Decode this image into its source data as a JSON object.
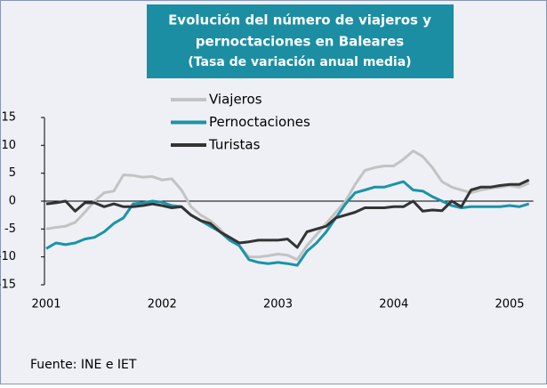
{
  "chart_data": {
    "type": "line",
    "title": [
      "Evolución del número de viajeros y",
      "pernoctaciones en Baleares"
    ],
    "subtitle": "(Tasa de variación anual media)",
    "categories": [
      "2001",
      null,
      null,
      null,
      null,
      null,
      null,
      null,
      null,
      null,
      null,
      null,
      "2002",
      null,
      null,
      null,
      null,
      null,
      null,
      null,
      null,
      null,
      null,
      null,
      "2003",
      null,
      null,
      null,
      null,
      null,
      null,
      null,
      null,
      null,
      null,
      null,
      "2004",
      null,
      null,
      null,
      null,
      null,
      null,
      null,
      null,
      null,
      null,
      null,
      "2005",
      null,
      null
    ],
    "series": [
      {
        "name": "Viajeros",
        "color": "#c3c3c3",
        "values": [
          -5,
          -4.7,
          -4.5,
          -3.8,
          -2,
          0,
          1.5,
          1.8,
          4.7,
          4.6,
          4.3,
          4.4,
          3.8,
          4,
          2,
          -1,
          -2.5,
          -3.5,
          -5,
          -7,
          -8,
          -10,
          -10,
          -9.8,
          -9.5,
          -9.7,
          -10.5,
          -8,
          -6,
          -4,
          -2,
          0,
          3,
          5.5,
          6,
          6.3,
          6.3,
          7.5,
          9,
          8,
          6,
          3.5,
          2.5,
          2,
          1.5,
          2,
          2.3,
          2.5,
          2.8,
          2.5,
          3.2
        ]
      },
      {
        "name": "Pernoctaciones",
        "color": "#1b93a8",
        "values": [
          -8.5,
          -7.5,
          -7.8,
          -7.5,
          -6.8,
          -6.5,
          -5.5,
          -4,
          -3,
          -0.5,
          -0.3,
          0,
          -0.2,
          -0.8,
          -1,
          -2.5,
          -3.5,
          -4.5,
          -5.5,
          -7,
          -8,
          -10.5,
          -11,
          -11.2,
          -11,
          -11.2,
          -11.5,
          -9,
          -7.5,
          -5.5,
          -3,
          -0.5,
          1.5,
          2,
          2.5,
          2.5,
          3,
          3.5,
          2,
          1.8,
          0.8,
          0,
          -0.8,
          -1.2,
          -1,
          -1,
          -1,
          -1,
          -0.8,
          -1,
          -0.5
        ]
      },
      {
        "name": "Turistas",
        "color": "#333333",
        "values": [
          -0.5,
          -0.3,
          0,
          -1.8,
          -0.3,
          -0.3,
          -1,
          -0.5,
          -1,
          -1,
          -0.8,
          -0.5,
          -0.8,
          -1.2,
          -1,
          -2.5,
          -3.5,
          -4,
          -5.5,
          -6.5,
          -7.5,
          -7.3,
          -7,
          -7,
          -7,
          -6.8,
          -8.3,
          -5.5,
          -5,
          -4.5,
          -3,
          -2.5,
          -2,
          -1.2,
          -1.2,
          -1.2,
          -1,
          -1,
          0,
          -1.8,
          -1.6,
          -1.7,
          0,
          -1,
          2,
          2.5,
          2.5,
          2.8,
          3,
          3,
          3.8
        ]
      }
    ],
    "ylim": [
      -15,
      15
    ],
    "yticks": [
      -15,
      -10,
      -5,
      0,
      5,
      10,
      15
    ],
    "source": "Fuente: INE e IET"
  }
}
